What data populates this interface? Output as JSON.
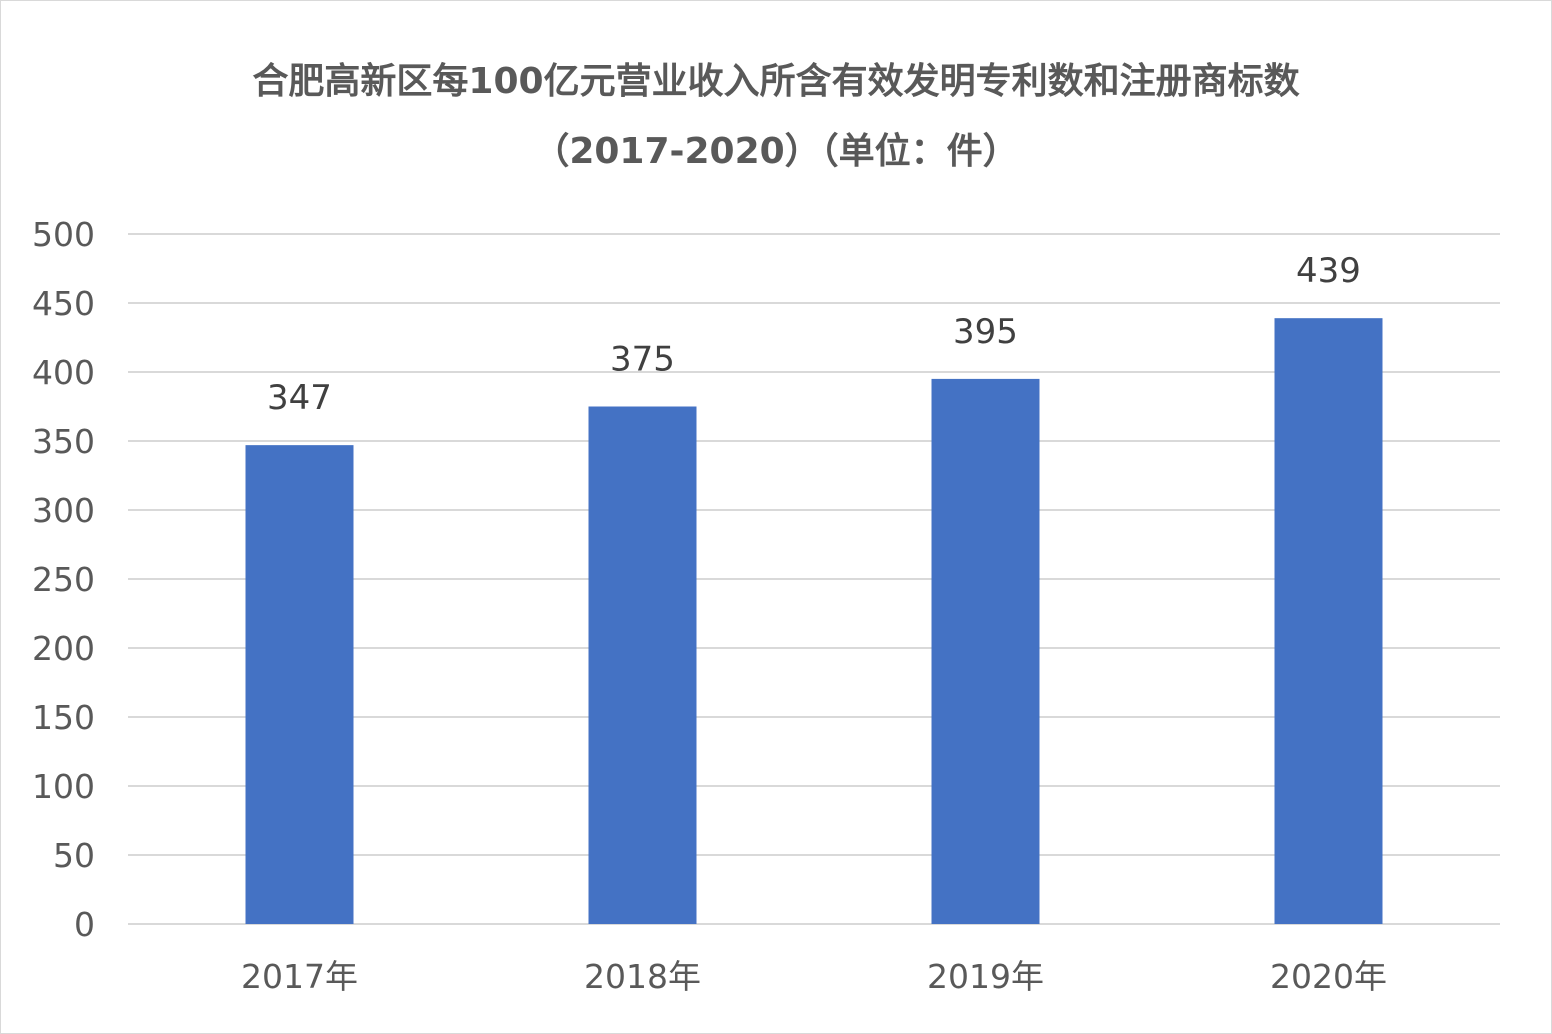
{
  "chart_data": {
    "type": "bar",
    "title": "合肥高新区每100亿元营业收入所含有效发明专利数和注册商标数",
    "subtitle": "（2017-2020）（单位：件）",
    "categories": [
      "2017年",
      "2018年",
      "2019年",
      "2020年"
    ],
    "series": [
      {
        "values": [
          347,
          375,
          395,
          439
        ]
      }
    ],
    "data_labels": [
      "347",
      "375",
      "395",
      "439"
    ],
    "ylim": [
      0,
      500
    ],
    "yticks": [
      "0",
      "50",
      "100",
      "150",
      "200",
      "250",
      "300",
      "350",
      "400",
      "450",
      "500"
    ],
    "xlabel": "",
    "ylabel": "",
    "grid": true,
    "legend": "none",
    "colors": {
      "bar": "#4472c4",
      "grid": "#d9d9d9",
      "text": "#595959"
    }
  }
}
